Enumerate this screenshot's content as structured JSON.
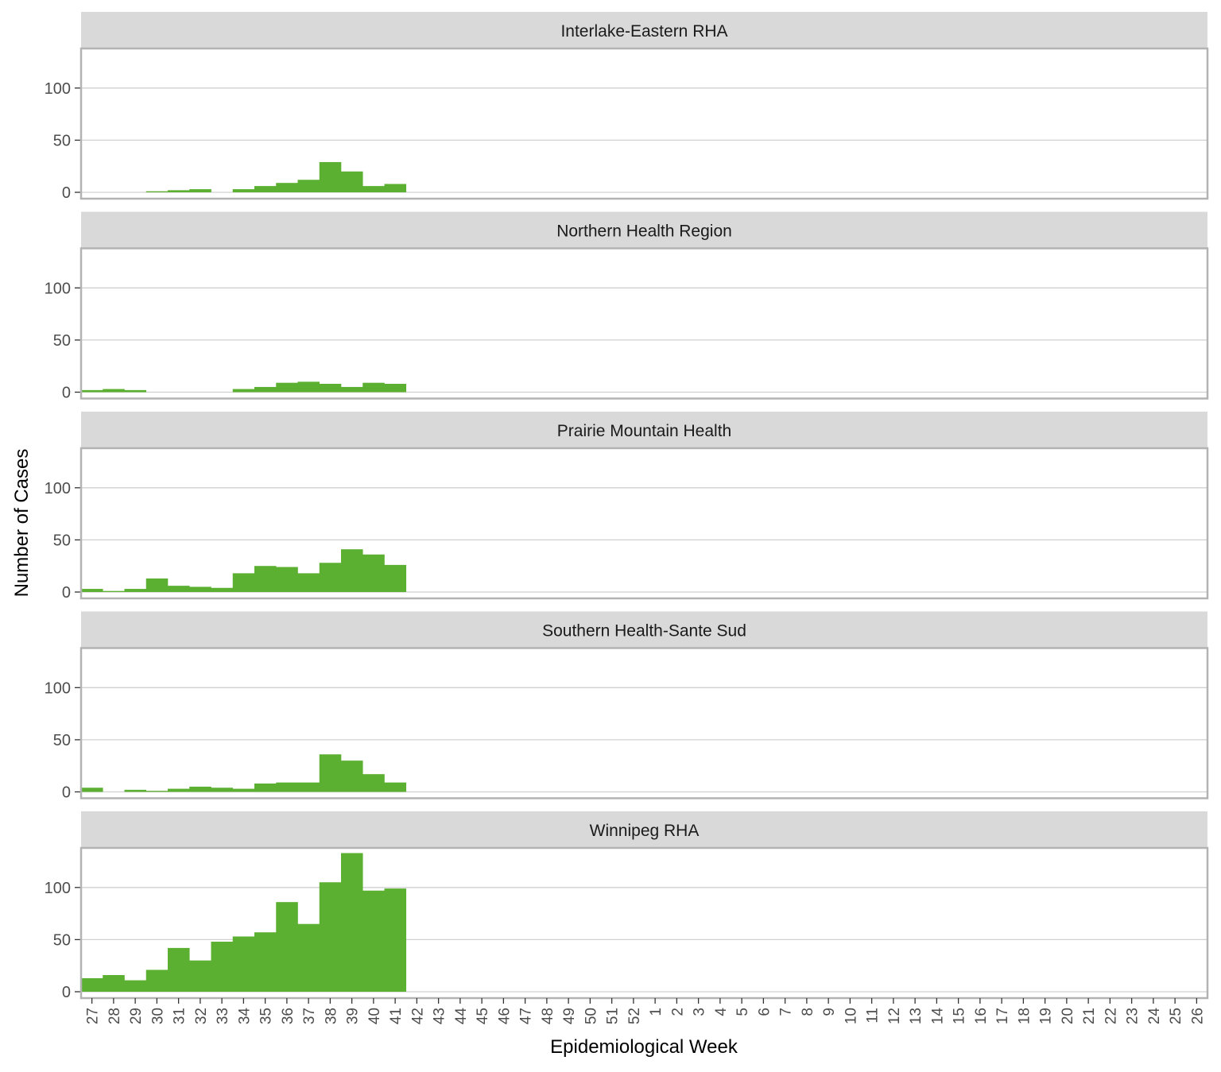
{
  "chart_data": {
    "type": "bar",
    "xlabel": "Epidemiological Week",
    "ylabel": "Number of Cases",
    "ylim": [
      0,
      140
    ],
    "yticks": [
      0,
      50,
      100
    ],
    "grid": true,
    "bar_color": "#5cb031",
    "strip_color": "#d9d9d9",
    "border_color": "#b3b3b3",
    "grid_color": "#d0d0d0",
    "categories": [
      "27",
      "28",
      "29",
      "30",
      "31",
      "32",
      "33",
      "34",
      "35",
      "36",
      "37",
      "38",
      "39",
      "40",
      "41",
      "42",
      "43",
      "44",
      "45",
      "46",
      "47",
      "48",
      "49",
      "50",
      "51",
      "52",
      "1",
      "2",
      "3",
      "4",
      "5",
      "6",
      "7",
      "8",
      "9",
      "10",
      "11",
      "12",
      "13",
      "14",
      "15",
      "16",
      "17",
      "18",
      "19",
      "20",
      "21",
      "22",
      "23",
      "24",
      "25",
      "26"
    ],
    "panels": [
      {
        "name": "Interlake-Eastern RHA",
        "values": [
          0,
          0,
          0,
          1,
          2,
          3,
          0,
          3,
          6,
          9,
          12,
          29,
          20,
          6,
          8,
          0,
          0,
          0,
          0,
          0,
          0,
          0,
          0,
          0,
          0,
          0,
          0,
          0,
          0,
          0,
          0,
          0,
          0,
          0,
          0,
          0,
          0,
          0,
          0,
          0,
          0,
          0,
          0,
          0,
          0,
          0,
          0,
          0,
          0,
          0,
          0,
          0
        ]
      },
      {
        "name": "Northern Health Region",
        "values": [
          2,
          3,
          2,
          0,
          0,
          0,
          0,
          3,
          5,
          9,
          10,
          8,
          5,
          9,
          8,
          0,
          0,
          0,
          0,
          0,
          0,
          0,
          0,
          0,
          0,
          0,
          0,
          0,
          0,
          0,
          0,
          0,
          0,
          0,
          0,
          0,
          0,
          0,
          0,
          0,
          0,
          0,
          0,
          0,
          0,
          0,
          0,
          0,
          0,
          0,
          0,
          0
        ]
      },
      {
        "name": "Prairie Mountain Health",
        "values": [
          3,
          1,
          3,
          13,
          6,
          5,
          4,
          18,
          25,
          24,
          18,
          28,
          41,
          36,
          26,
          0,
          0,
          0,
          0,
          0,
          0,
          0,
          0,
          0,
          0,
          0,
          0,
          0,
          0,
          0,
          0,
          0,
          0,
          0,
          0,
          0,
          0,
          0,
          0,
          0,
          0,
          0,
          0,
          0,
          0,
          0,
          0,
          0,
          0,
          0,
          0,
          0
        ]
      },
      {
        "name": "Southern Health-Sante Sud",
        "values": [
          4,
          0,
          2,
          1,
          3,
          5,
          4,
          3,
          8,
          9,
          9,
          36,
          30,
          17,
          9,
          0,
          0,
          0,
          0,
          0,
          0,
          0,
          0,
          0,
          0,
          0,
          0,
          0,
          0,
          0,
          0,
          0,
          0,
          0,
          0,
          0,
          0,
          0,
          0,
          0,
          0,
          0,
          0,
          0,
          0,
          0,
          0,
          0,
          0,
          0,
          0,
          0
        ]
      },
      {
        "name": "Winnipeg RHA",
        "values": [
          13,
          16,
          11,
          21,
          42,
          30,
          48,
          53,
          57,
          86,
          65,
          105,
          133,
          97,
          99,
          0,
          0,
          0,
          0,
          0,
          0,
          0,
          0,
          0,
          0,
          0,
          0,
          0,
          0,
          0,
          0,
          0,
          0,
          0,
          0,
          0,
          0,
          0,
          0,
          0,
          0,
          0,
          0,
          0,
          0,
          0,
          0,
          0,
          0,
          0,
          0,
          0
        ]
      }
    ]
  }
}
